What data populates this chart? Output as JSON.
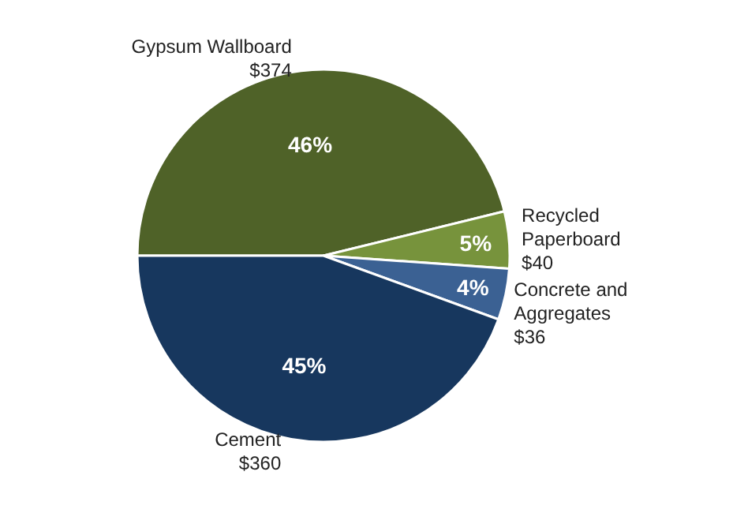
{
  "chart_data": {
    "type": "pie",
    "categories": [
      "Gypsum Wallboard",
      "Recycled\nPaperboard",
      "Concrete and\nAggregates",
      "Cement"
    ],
    "values": [
      374,
      40,
      36,
      360
    ],
    "colors": [
      "#4f6228",
      "#77933c",
      "#3b6193",
      "#17375e"
    ],
    "value_labels": [
      "$374",
      "$40",
      "$36",
      "$360"
    ],
    "annotations": [
      {
        "text": "46%",
        "x": "Gypsum Wallboard"
      },
      {
        "text": "5%",
        "x": "Recycled\nPaperboard"
      },
      {
        "text": "4%",
        "x": "Concrete and\nAggregates"
      },
      {
        "text": "45%",
        "x": "Cement"
      }
    ],
    "legend": false
  }
}
